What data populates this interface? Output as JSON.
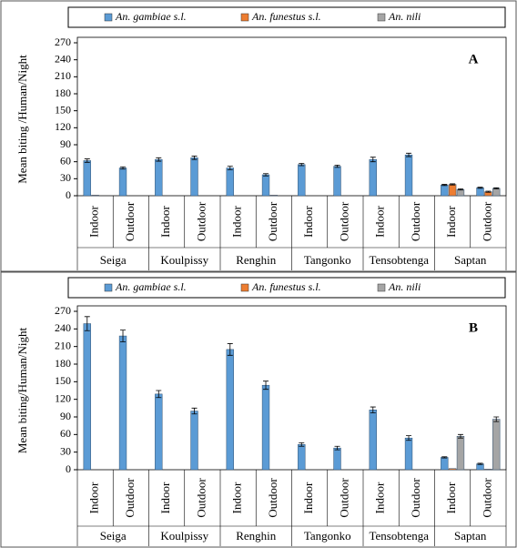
{
  "chart_data": [
    {
      "type": "bar",
      "annotation": "A",
      "y_label": "Mean biting /Human/Night",
      "groups": [
        "Seiga",
        "Koulpissy",
        "Renghin",
        "Tangonko",
        "Tensobtenga",
        "Saptan"
      ],
      "categories": [
        "Indoor",
        "Outdoor",
        "Indoor",
        "Outdoor",
        "Indoor",
        "Outdoor",
        "Indoor",
        "Outdoor",
        "Indoor",
        "Outdoor",
        "Indoor",
        "Outdoor"
      ],
      "ylim": [
        0,
        270
      ],
      "yticks": [
        0,
        30,
        60,
        90,
        120,
        150,
        180,
        210,
        240,
        270
      ],
      "series": [
        {
          "name": "An. gambiae s.l.",
          "color": "#5b9bd5",
          "values": [
            62,
            49,
            64,
            67,
            49,
            37,
            55,
            52,
            64,
            72,
            19,
            14
          ],
          "errors": [
            3,
            2,
            3,
            3,
            3,
            2,
            2,
            2,
            4,
            3,
            1,
            1
          ]
        },
        {
          "name": "An. funestus s.l.",
          "color": "#ed7d31",
          "values": [
            1,
            0,
            0,
            0,
            0,
            1,
            0,
            0,
            0,
            0,
            20,
            7
          ],
          "errors": [
            0,
            0,
            0,
            0,
            0,
            0,
            0,
            0,
            0,
            0,
            1,
            1
          ]
        },
        {
          "name": "An. nili",
          "color": "#a5a5a5",
          "values": [
            0,
            0,
            0,
            0,
            0,
            0,
            0,
            0,
            0,
            0,
            11,
            13
          ],
          "errors": [
            0,
            0,
            0,
            0,
            0,
            0,
            0,
            0,
            0,
            0,
            1,
            1
          ]
        }
      ]
    },
    {
      "type": "bar",
      "annotation": "B",
      "y_label": "Mean biting/Human/Night",
      "groups": [
        "Seiga",
        "Koulpissy",
        "Renghin",
        "Tangonko",
        "Tensobtenga",
        "Saptan"
      ],
      "categories": [
        "Indoor",
        "Outdoor",
        "Indoor",
        "Outdoor",
        "Indoor",
        "Outdoor",
        "Indoor",
        "Outdoor",
        "Indoor",
        "Outdoor",
        "Indoor",
        "Outdoor"
      ],
      "ylim": [
        0,
        270
      ],
      "yticks": [
        0,
        30,
        60,
        90,
        120,
        150,
        180,
        210,
        240,
        270
      ],
      "series": [
        {
          "name": "An. gambiae s.l.",
          "color": "#5b9bd5",
          "values": [
            249,
            228,
            129,
            100,
            205,
            144,
            43,
            37,
            102,
            54,
            21,
            10
          ],
          "errors": [
            12,
            10,
            6,
            5,
            10,
            7,
            3,
            3,
            5,
            4,
            1,
            1
          ]
        },
        {
          "name": "An. funestus s.l.",
          "color": "#ed7d31",
          "values": [
            0,
            0,
            0,
            0,
            0,
            0,
            0,
            0,
            0,
            0,
            2,
            1
          ],
          "errors": [
            0,
            0,
            0,
            0,
            0,
            0,
            0,
            0,
            0,
            0,
            0,
            0
          ]
        },
        {
          "name": "An. nili",
          "color": "#a5a5a5",
          "values": [
            0,
            0,
            0,
            0,
            0,
            0,
            0,
            0,
            0,
            0,
            57,
            86
          ],
          "errors": [
            0,
            0,
            0,
            0,
            0,
            0,
            0,
            0,
            0,
            0,
            3,
            4
          ]
        }
      ]
    }
  ]
}
